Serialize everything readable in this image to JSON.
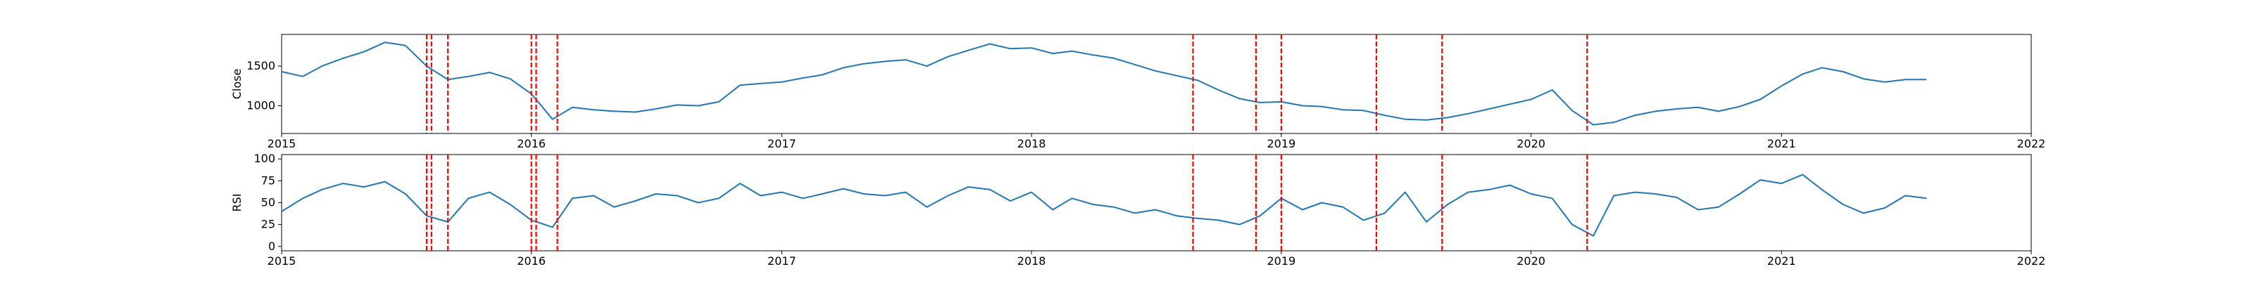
{
  "chart_data": [
    {
      "type": "line",
      "ylabel": "Close",
      "xlim": [
        "2015-01-01",
        "2022-01-01"
      ],
      "ylim": [
        650,
        1900
      ],
      "yticks": [
        1000,
        1500
      ],
      "xticks": [
        "2015",
        "2016",
        "2017",
        "2018",
        "2019",
        "2020",
        "2021",
        "2022"
      ],
      "series": [
        {
          "color": "#1f77b4",
          "points": [
            [
              "2015-01-01",
              1430
            ],
            [
              "2015-02-01",
              1370
            ],
            [
              "2015-03-01",
              1500
            ],
            [
              "2015-04-01",
              1600
            ],
            [
              "2015-05-01",
              1680
            ],
            [
              "2015-06-01",
              1800
            ],
            [
              "2015-07-01",
              1760
            ],
            [
              "2015-08-01",
              1500
            ],
            [
              "2015-09-01",
              1330
            ],
            [
              "2015-10-01",
              1370
            ],
            [
              "2015-11-01",
              1420
            ],
            [
              "2015-12-01",
              1340
            ],
            [
              "2016-01-01",
              1150
            ],
            [
              "2016-02-01",
              830
            ],
            [
              "2016-03-01",
              980
            ],
            [
              "2016-04-01",
              950
            ],
            [
              "2016-05-01",
              930
            ],
            [
              "2016-06-01",
              920
            ],
            [
              "2016-07-01",
              960
            ],
            [
              "2016-08-01",
              1010
            ],
            [
              "2016-09-01",
              1000
            ],
            [
              "2016-10-01",
              1050
            ],
            [
              "2016-11-01",
              1260
            ],
            [
              "2016-12-01",
              1280
            ],
            [
              "2017-01-01",
              1300
            ],
            [
              "2017-02-01",
              1350
            ],
            [
              "2017-03-01",
              1390
            ],
            [
              "2017-04-01",
              1480
            ],
            [
              "2017-05-01",
              1530
            ],
            [
              "2017-06-01",
              1560
            ],
            [
              "2017-07-01",
              1580
            ],
            [
              "2017-08-01",
              1500
            ],
            [
              "2017-09-01",
              1620
            ],
            [
              "2017-10-01",
              1700
            ],
            [
              "2017-11-01",
              1780
            ],
            [
              "2017-12-01",
              1720
            ],
            [
              "2018-01-01",
              1730
            ],
            [
              "2018-02-01",
              1660
            ],
            [
              "2018-03-01",
              1690
            ],
            [
              "2018-04-01",
              1640
            ],
            [
              "2018-05-01",
              1600
            ],
            [
              "2018-06-01",
              1520
            ],
            [
              "2018-07-01",
              1440
            ],
            [
              "2018-08-01",
              1380
            ],
            [
              "2018-09-01",
              1320
            ],
            [
              "2018-10-01",
              1200
            ],
            [
              "2018-11-01",
              1090
            ],
            [
              "2018-12-01",
              1040
            ],
            [
              "2019-01-01",
              1050
            ],
            [
              "2019-02-01",
              1000
            ],
            [
              "2019-03-01",
              990
            ],
            [
              "2019-04-01",
              950
            ],
            [
              "2019-05-01",
              940
            ],
            [
              "2019-06-01",
              880
            ],
            [
              "2019-07-01",
              830
            ],
            [
              "2019-08-01",
              820
            ],
            [
              "2019-09-01",
              850
            ],
            [
              "2019-10-01",
              900
            ],
            [
              "2019-11-01",
              960
            ],
            [
              "2019-12-01",
              1020
            ],
            [
              "2020-01-01",
              1080
            ],
            [
              "2020-02-01",
              1200
            ],
            [
              "2020-03-01",
              940
            ],
            [
              "2020-04-01",
              760
            ],
            [
              "2020-05-01",
              790
            ],
            [
              "2020-06-01",
              880
            ],
            [
              "2020-07-01",
              930
            ],
            [
              "2020-08-01",
              960
            ],
            [
              "2020-09-01",
              980
            ],
            [
              "2020-10-01",
              930
            ],
            [
              "2020-11-01",
              990
            ],
            [
              "2020-12-01",
              1080
            ],
            [
              "2021-01-01",
              1250
            ],
            [
              "2021-02-01",
              1400
            ],
            [
              "2021-03-01",
              1480
            ],
            [
              "2021-04-01",
              1430
            ],
            [
              "2021-05-01",
              1340
            ],
            [
              "2021-06-01",
              1300
            ],
            [
              "2021-07-01",
              1330
            ],
            [
              "2021-08-01",
              1330
            ]
          ]
        }
      ],
      "vlines": [
        "2015-08-01",
        "2015-08-08",
        "2015-09-01",
        "2016-01-01",
        "2016-01-08",
        "2016-02-08",
        "2018-08-25",
        "2018-11-25",
        "2019-01-01",
        "2019-05-20",
        "2019-08-24",
        "2020-03-23"
      ],
      "vline_color": "#ff0000"
    },
    {
      "type": "line",
      "ylabel": "RSI",
      "xlim": [
        "2015-01-01",
        "2022-01-01"
      ],
      "ylim": [
        -5,
        105
      ],
      "yticks": [
        0,
        25,
        50,
        75,
        100
      ],
      "xticks": [
        "2015",
        "2016",
        "2017",
        "2018",
        "2019",
        "2020",
        "2021",
        "2022"
      ],
      "series": [
        {
          "color": "#1f77b4",
          "points": [
            [
              "2015-01-01",
              40
            ],
            [
              "2015-02-01",
              55
            ],
            [
              "2015-03-01",
              65
            ],
            [
              "2015-04-01",
              72
            ],
            [
              "2015-05-01",
              68
            ],
            [
              "2015-06-01",
              74
            ],
            [
              "2015-07-01",
              60
            ],
            [
              "2015-08-01",
              35
            ],
            [
              "2015-09-01",
              28
            ],
            [
              "2015-10-01",
              55
            ],
            [
              "2015-11-01",
              62
            ],
            [
              "2015-12-01",
              48
            ],
            [
              "2016-01-01",
              30
            ],
            [
              "2016-02-01",
              22
            ],
            [
              "2016-03-01",
              55
            ],
            [
              "2016-04-01",
              58
            ],
            [
              "2016-05-01",
              45
            ],
            [
              "2016-06-01",
              52
            ],
            [
              "2016-07-01",
              60
            ],
            [
              "2016-08-01",
              58
            ],
            [
              "2016-09-01",
              50
            ],
            [
              "2016-10-01",
              55
            ],
            [
              "2016-11-01",
              72
            ],
            [
              "2016-12-01",
              58
            ],
            [
              "2017-01-01",
              62
            ],
            [
              "2017-02-01",
              55
            ],
            [
              "2017-03-01",
              60
            ],
            [
              "2017-04-01",
              66
            ],
            [
              "2017-05-01",
              60
            ],
            [
              "2017-06-01",
              58
            ],
            [
              "2017-07-01",
              62
            ],
            [
              "2017-08-01",
              45
            ],
            [
              "2017-09-01",
              58
            ],
            [
              "2017-10-01",
              68
            ],
            [
              "2017-11-01",
              65
            ],
            [
              "2017-12-01",
              52
            ],
            [
              "2018-01-01",
              62
            ],
            [
              "2018-02-01",
              42
            ],
            [
              "2018-03-01",
              55
            ],
            [
              "2018-04-01",
              48
            ],
            [
              "2018-05-01",
              45
            ],
            [
              "2018-06-01",
              38
            ],
            [
              "2018-07-01",
              42
            ],
            [
              "2018-08-01",
              35
            ],
            [
              "2018-09-01",
              32
            ],
            [
              "2018-10-01",
              30
            ],
            [
              "2018-11-01",
              25
            ],
            [
              "2018-12-01",
              35
            ],
            [
              "2019-01-01",
              55
            ],
            [
              "2019-02-01",
              42
            ],
            [
              "2019-03-01",
              50
            ],
            [
              "2019-04-01",
              45
            ],
            [
              "2019-05-01",
              30
            ],
            [
              "2019-06-01",
              38
            ],
            [
              "2019-07-01",
              62
            ],
            [
              "2019-08-01",
              28
            ],
            [
              "2019-09-01",
              48
            ],
            [
              "2019-10-01",
              62
            ],
            [
              "2019-11-01",
              65
            ],
            [
              "2019-12-01",
              70
            ],
            [
              "2020-01-01",
              60
            ],
            [
              "2020-02-01",
              55
            ],
            [
              "2020-03-01",
              25
            ],
            [
              "2020-04-01",
              12
            ],
            [
              "2020-05-01",
              58
            ],
            [
              "2020-06-01",
              62
            ],
            [
              "2020-07-01",
              60
            ],
            [
              "2020-08-01",
              56
            ],
            [
              "2020-09-01",
              42
            ],
            [
              "2020-10-01",
              45
            ],
            [
              "2020-11-01",
              60
            ],
            [
              "2020-12-01",
              76
            ],
            [
              "2021-01-01",
              72
            ],
            [
              "2021-02-01",
              82
            ],
            [
              "2021-03-01",
              65
            ],
            [
              "2021-04-01",
              48
            ],
            [
              "2021-05-01",
              38
            ],
            [
              "2021-06-01",
              44
            ],
            [
              "2021-07-01",
              58
            ],
            [
              "2021-08-01",
              55
            ]
          ]
        }
      ],
      "vlines": [
        "2015-08-01",
        "2015-08-08",
        "2015-09-01",
        "2016-01-01",
        "2016-01-08",
        "2016-02-08",
        "2018-08-25",
        "2018-11-25",
        "2019-01-01",
        "2019-05-20",
        "2019-08-24",
        "2020-03-23"
      ],
      "vline_color": "#ff0000"
    }
  ]
}
